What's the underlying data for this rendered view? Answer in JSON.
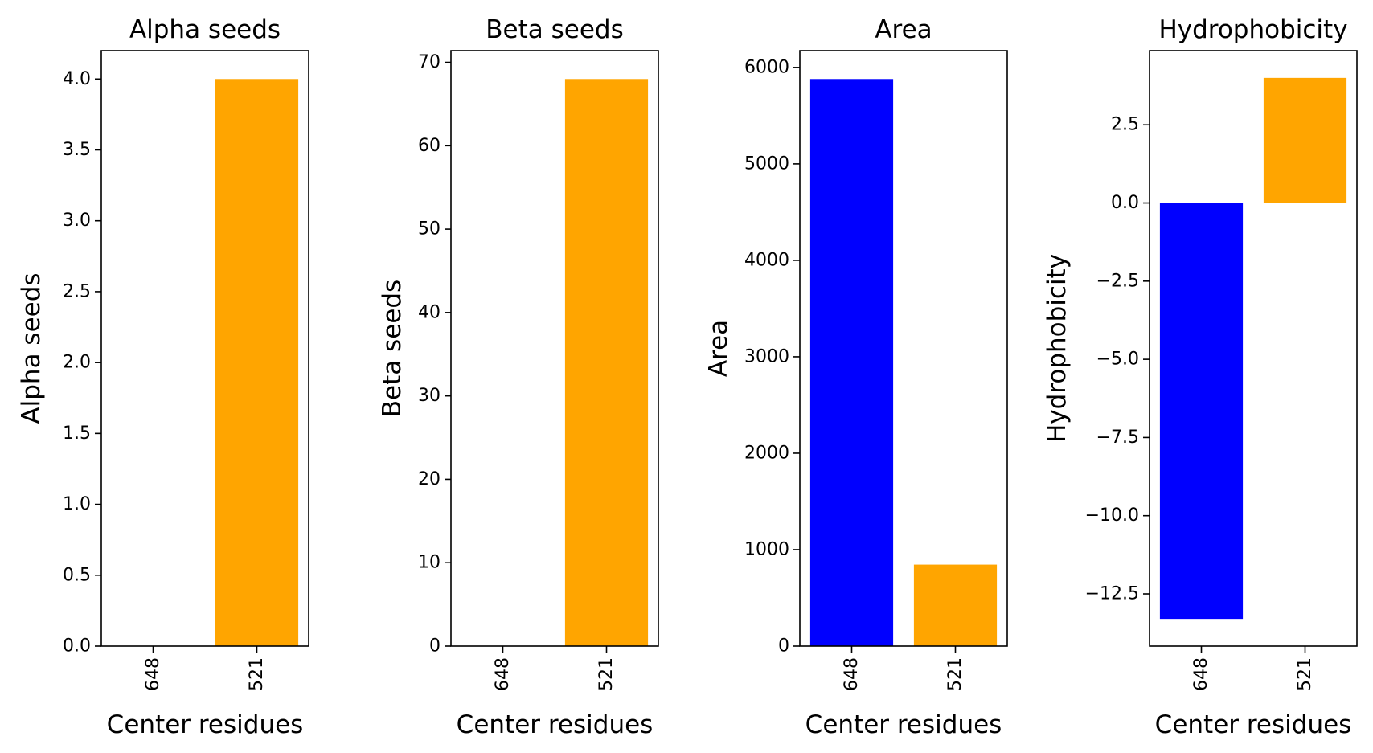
{
  "chart_data": [
    {
      "type": "bar",
      "title": "Alpha seeds",
      "xlabel": "Center residues",
      "ylabel": "Alpha seeds",
      "categories": [
        "648",
        "521"
      ],
      "values": [
        0,
        4.0
      ],
      "colors": [
        "#0000ff",
        "#ffa500"
      ],
      "ylim": [
        0,
        4.2
      ],
      "yticks": [
        0,
        0.5,
        1.0,
        1.5,
        2.0,
        2.5,
        3.0,
        3.5,
        4.0
      ],
      "ytick_labels": [
        "0.0",
        "0.5",
        "1.0",
        "1.5",
        "2.0",
        "2.5",
        "3.0",
        "3.5",
        "4.0"
      ]
    },
    {
      "type": "bar",
      "title": "Beta seeds",
      "xlabel": "Center residues",
      "ylabel": "Beta seeds",
      "categories": [
        "648",
        "521"
      ],
      "values": [
        0,
        68
      ],
      "colors": [
        "#0000ff",
        "#ffa500"
      ],
      "ylim": [
        0,
        71.4
      ],
      "yticks": [
        0,
        10,
        20,
        30,
        40,
        50,
        60,
        70
      ],
      "ytick_labels": [
        "0",
        "10",
        "20",
        "30",
        "40",
        "50",
        "60",
        "70"
      ]
    },
    {
      "type": "bar",
      "title": "Area",
      "xlabel": "Center residues",
      "ylabel": "Area",
      "categories": [
        "648",
        "521"
      ],
      "values": [
        5880,
        845
      ],
      "colors": [
        "#0000ff",
        "#ffa500"
      ],
      "ylim": [
        0,
        6174
      ],
      "yticks": [
        0,
        1000,
        2000,
        3000,
        4000,
        5000,
        6000
      ],
      "ytick_labels": [
        "0",
        "1000",
        "2000",
        "3000",
        "4000",
        "5000",
        "6000"
      ]
    },
    {
      "type": "bar",
      "title": "Hydrophobicity",
      "xlabel": "Center residues",
      "ylabel": "Hydrophobicity",
      "categories": [
        "648",
        "521"
      ],
      "values": [
        -13.3,
        4.0
      ],
      "colors": [
        "#0000ff",
        "#ffa500"
      ],
      "ylim": [
        -14.17,
        4.87
      ],
      "yticks": [
        -12.5,
        -10.0,
        -7.5,
        -5.0,
        -2.5,
        0.0,
        2.5
      ],
      "ytick_labels": [
        "−12.5",
        "−10.0",
        "−7.5",
        "−5.0",
        "−2.5",
        "0.0",
        "2.5"
      ]
    }
  ]
}
